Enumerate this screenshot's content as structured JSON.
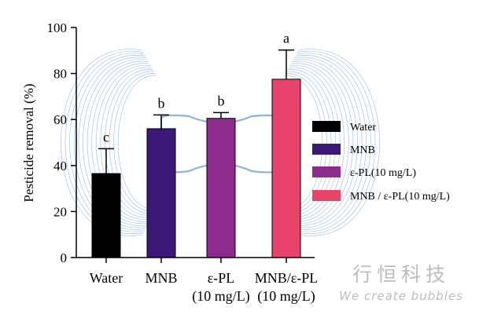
{
  "chart_data": {
    "type": "bar",
    "ylabel": "Pesticide removal (%)",
    "ylim": [
      0,
      100
    ],
    "yticks": [
      0,
      20,
      40,
      60,
      80,
      100
    ],
    "categories": [
      [
        "Water"
      ],
      [
        "MNB"
      ],
      [
        "ε-PL",
        "(10 mg/L)"
      ],
      [
        "MNB/ε-PL",
        "(10 mg/L)"
      ]
    ],
    "values": [
      36.5,
      56,
      60.5,
      77.5
    ],
    "error": [
      10.8,
      6,
      2.5,
      12.7
    ],
    "significance": [
      "c",
      "b",
      "b",
      "a"
    ],
    "colors": [
      "#000000",
      "#3b1878",
      "#8e2c8e",
      "#e8436a"
    ],
    "legend": {
      "position": "right",
      "entries": [
        "Water",
        "MNB",
        "ε-PL(10 mg/L)",
        "MNB / ε-PL(10 mg/L)"
      ]
    }
  },
  "watermark": {
    "cn": "行恒科技",
    "en": "We create bubbles"
  }
}
